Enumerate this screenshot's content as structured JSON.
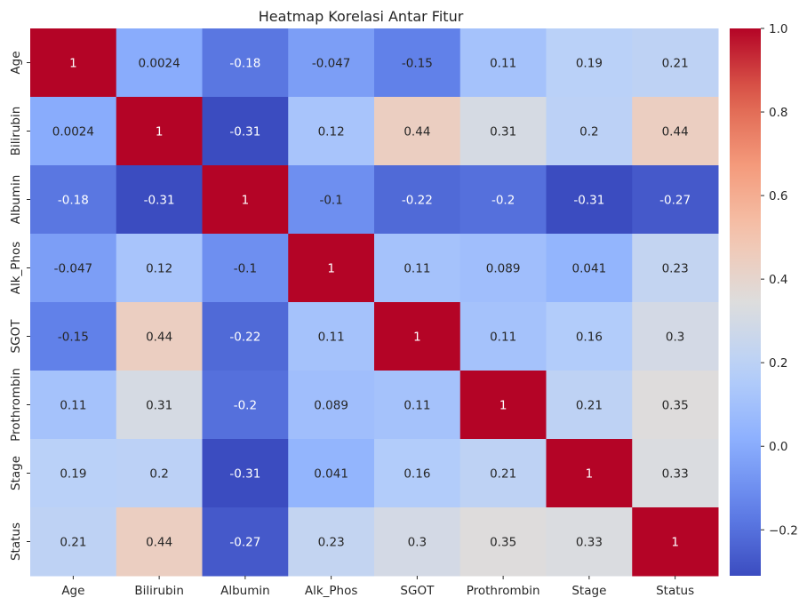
{
  "chart_data": {
    "type": "heatmap",
    "title": "Heatmap Korelasi Antar Fitur",
    "labels": [
      "Age",
      "Bilirubin",
      "Albumin",
      "Alk_Phos",
      "SGOT",
      "Prothrombin",
      "Stage",
      "Status"
    ],
    "values": [
      [
        1,
        0.0024,
        -0.18,
        -0.047,
        -0.15,
        0.11,
        0.19,
        0.21
      ],
      [
        0.0024,
        1,
        -0.31,
        0.12,
        0.44,
        0.31,
        0.2,
        0.44
      ],
      [
        -0.18,
        -0.31,
        1,
        -0.1,
        -0.22,
        -0.2,
        -0.31,
        -0.27
      ],
      [
        -0.047,
        0.12,
        -0.1,
        1,
        0.11,
        0.089,
        0.041,
        0.23
      ],
      [
        -0.15,
        0.44,
        -0.22,
        0.11,
        1,
        0.11,
        0.16,
        0.3
      ],
      [
        0.11,
        0.31,
        -0.2,
        0.089,
        0.11,
        1,
        0.21,
        0.35
      ],
      [
        0.19,
        0.2,
        -0.31,
        0.041,
        0.16,
        0.21,
        1,
        0.33
      ],
      [
        0.21,
        0.44,
        -0.27,
        0.23,
        0.3,
        0.35,
        0.33,
        1
      ]
    ],
    "colormap": "coolwarm",
    "vmin": -0.31,
    "vmax": 1.0,
    "colorbar_ticks": [
      "1.0",
      "0.8",
      "0.6",
      "0.4",
      "0.2",
      "0.0",
      "−0.2"
    ],
    "colorbar_tick_values": [
      1.0,
      0.8,
      0.6,
      0.4,
      0.2,
      0.0,
      -0.2
    ],
    "annotated": true,
    "grid": false
  }
}
